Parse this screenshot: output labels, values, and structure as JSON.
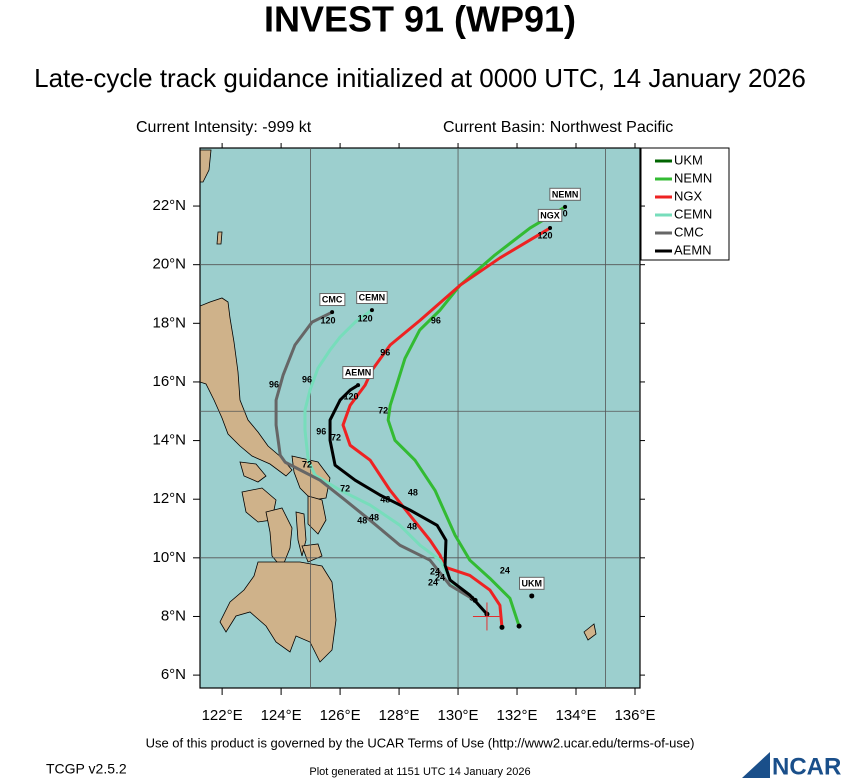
{
  "header": {
    "title": "INVEST 91 (WP91)",
    "subtitle": "Late-cycle track guidance initialized at 0000 UTC, 14 January 2026",
    "intensity": "Current Intensity: -999 kt",
    "basin": "Current Basin: Northwest Pacific"
  },
  "map": {
    "xlim": [
      121.25,
      136.17
    ],
    "ylim": [
      5.56,
      23.98
    ],
    "xticks": [
      {
        "value": 122,
        "label": "122°E"
      },
      {
        "value": 124,
        "label": "124°E"
      },
      {
        "value": 126,
        "label": "126°E"
      },
      {
        "value": 128,
        "label": "128°E"
      },
      {
        "value": 130,
        "label": "130°E"
      },
      {
        "value": 132,
        "label": "132°E"
      },
      {
        "value": 134,
        "label": "134°E"
      },
      {
        "value": 136,
        "label": "136°E"
      }
    ],
    "yticks": [
      {
        "value": 6,
        "label": "6°N"
      },
      {
        "value": 8,
        "label": "8°N"
      },
      {
        "value": 10,
        "label": "10°N"
      },
      {
        "value": 12,
        "label": "12°N"
      },
      {
        "value": 14,
        "label": "14°N"
      },
      {
        "value": 16,
        "label": "16°N"
      },
      {
        "value": 18,
        "label": "18°N"
      },
      {
        "value": 20,
        "label": "20°N"
      },
      {
        "value": 22,
        "label": "22°N"
      }
    ],
    "grid_lons": [
      125,
      130,
      135
    ],
    "grid_lats": [
      10,
      15,
      20
    ],
    "storm_position": [
      130.98,
      8.0
    ],
    "tracks": [
      {
        "name": "UKM",
        "color": "#006400",
        "lons": [
          132.5
        ],
        "lats": [
          8.7
        ],
        "hour_labels": []
      },
      {
        "name": "NEMN",
        "color": "#33bb33",
        "lons": [
          132.07,
          131.76,
          131.08,
          130.4,
          129.9,
          129.22,
          128.54,
          127.86,
          127.63,
          127.7,
          127.97,
          128.2,
          128.7,
          129.39,
          130.07,
          131.25,
          132.44,
          133.63
        ],
        "lats": [
          7.67,
          8.62,
          9.3,
          9.92,
          10.77,
          12.3,
          13.33,
          14.01,
          14.7,
          15.2,
          16.06,
          16.8,
          17.77,
          18.45,
          19.3,
          20.33,
          21.25,
          21.97
        ],
        "hour_labels": [
          {
            "text": "24",
            "lon": 129.15,
            "lat": 9.13
          },
          {
            "text": "48",
            "lon": 128.44,
            "lat": 11.04
          },
          {
            "text": "72",
            "lon": 127.46,
            "lat": 15.0
          },
          {
            "text": "96",
            "lon": 129.25,
            "lat": 18.08
          },
          {
            "text": "120",
            "lon": 133.46,
            "lat": 21.73
          }
        ]
      },
      {
        "name": "NGX",
        "color": "#ee2222",
        "lons": [
          131.49,
          131.42,
          131.08,
          130.4,
          129.56,
          129.39,
          129.05,
          128.37,
          127.69,
          127.02,
          126.34,
          126.1,
          126.34,
          126.85,
          127.08,
          127.7,
          128.71,
          130.07,
          131.42,
          133.12
        ],
        "lats": [
          7.63,
          8.38,
          8.9,
          9.4,
          9.68,
          10.09,
          10.6,
          11.45,
          12.31,
          13.33,
          13.84,
          14.53,
          15.2,
          15.89,
          16.4,
          17.26,
          18.1,
          19.3,
          20.23,
          21.25
        ],
        "hour_labels": [
          {
            "text": "24",
            "lon": 131.59,
            "lat": 9.54
          },
          {
            "text": "48",
            "lon": 128.47,
            "lat": 12.2
          },
          {
            "text": "72",
            "lon": 125.86,
            "lat": 14.08
          },
          {
            "text": "96",
            "lon": 127.53,
            "lat": 16.98
          },
          {
            "text": "120",
            "lon": 132.95,
            "lat": 20.98
          }
        ]
      },
      {
        "name": "CEMN",
        "color": "#77ddbb",
        "lons": [
          130.47,
          129.9,
          129.39,
          128.71,
          128.03,
          127.02,
          126.0,
          125.15,
          124.92,
          124.81,
          124.81,
          124.98,
          125.25,
          125.66,
          126.0,
          126.51,
          127.08
        ],
        "lats": [
          8.62,
          8.96,
          9.92,
          10.43,
          11.11,
          11.8,
          12.31,
          12.82,
          13.33,
          14.35,
          15.04,
          15.72,
          16.47,
          17.09,
          17.53,
          18.04,
          18.45
        ],
        "hour_labels": [
          {
            "text": "48",
            "lon": 127.15,
            "lat": 11.35
          },
          {
            "text": "72",
            "lon": 126.17,
            "lat": 12.34
          },
          {
            "text": "96",
            "lon": 124.88,
            "lat": 16.06
          },
          {
            "text": "120",
            "lon": 126.85,
            "lat": 18.14
          }
        ]
      },
      {
        "name": "CMC",
        "color": "#666666",
        "lons": [
          130.58,
          129.73,
          129.05,
          128.03,
          127.02,
          126.17,
          125.32,
          124.64,
          124.14,
          123.97,
          123.83,
          123.83,
          124.07,
          124.47,
          125.05,
          125.73
        ],
        "lats": [
          8.55,
          9.06,
          9.92,
          10.43,
          11.28,
          11.97,
          12.65,
          13.0,
          13.26,
          13.5,
          14.53,
          15.38,
          16.24,
          17.26,
          18.04,
          18.38
        ],
        "hour_labels": [
          {
            "text": "24",
            "lon": 129.39,
            "lat": 9.3
          },
          {
            "text": "48",
            "lon": 126.75,
            "lat": 11.25
          },
          {
            "text": "72",
            "lon": 124.88,
            "lat": 13.16
          },
          {
            "text": "96",
            "lon": 123.76,
            "lat": 15.89
          },
          {
            "text": "120",
            "lon": 125.59,
            "lat": 18.08
          }
        ]
      },
      {
        "name": "AEMN",
        "color": "#000000",
        "lons": [
          130.98,
          130.41,
          129.73,
          129.56,
          129.59,
          129.29,
          128.37,
          127.36,
          126.51,
          125.83,
          125.66,
          125.66,
          126.0,
          126.34,
          126.61
        ],
        "lats": [
          8.08,
          8.72,
          9.24,
          9.75,
          10.6,
          11.11,
          11.63,
          12.14,
          12.65,
          13.16,
          14.01,
          14.7,
          15.38,
          15.72,
          15.89
        ],
        "hour_labels": [
          {
            "text": "24",
            "lon": 129.22,
            "lat": 9.51
          },
          {
            "text": "48",
            "lon": 127.53,
            "lat": 11.97
          },
          {
            "text": "96",
            "lon": 125.36,
            "lat": 14.29
          },
          {
            "text": "120",
            "lon": 126.37,
            "lat": 15.48
          }
        ]
      }
    ]
  },
  "footer": {
    "terms": "Use of this product is governed by the UCAR Terms of Use (http://www2.ucar.edu/terms-of-use)",
    "version": "TCGP v2.5.2",
    "generated": "Plot generated at 1151 UTC  14 January 2026",
    "logo": "NCAR"
  }
}
